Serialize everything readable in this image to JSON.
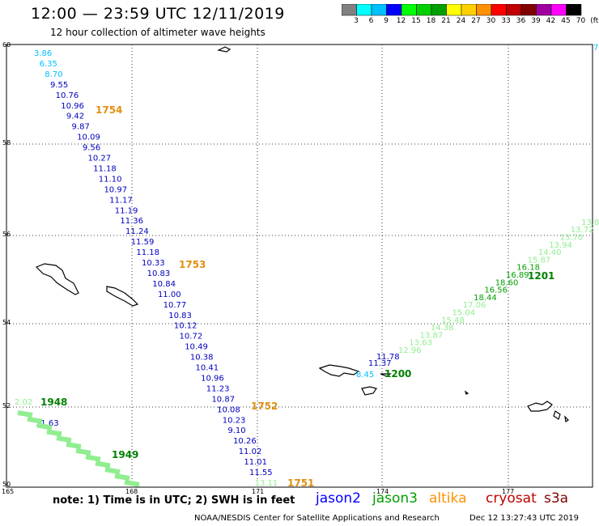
{
  "header": {
    "title": "12:00 — 23:59 UTC 12/11/2019",
    "subtitle": "12 hour collection of altimeter wave heights"
  },
  "colorbar": {
    "colors": [
      "#808080",
      "#00ffff",
      "#00c0ff",
      "#0000ff",
      "#00ff00",
      "#00d000",
      "#00a000",
      "#ffff00",
      "#ffd000",
      "#ff9000",
      "#ff0000",
      "#c00000",
      "#800000",
      "#a000a0",
      "#ff00ff",
      "#000000"
    ],
    "labels": [
      "3",
      "6",
      "9",
      "12",
      "15",
      "18",
      "21",
      "24",
      "27",
      "30",
      "33",
      "36",
      "39",
      "42",
      "45",
      "70",
      "(ft)"
    ]
  },
  "axes": {
    "lat_labels": [
      "60",
      "58",
      "56",
      "54",
      "52",
      "50"
    ],
    "lon_labels": [
      "165",
      "168",
      "171",
      "174",
      "177"
    ]
  },
  "tracks": {
    "jason2_track": [
      "3.86",
      "6.35",
      "8.70",
      "9.55",
      "10.76",
      "10.96",
      "9.42",
      "9.87",
      "10.09",
      "9.56",
      "10.27",
      "11.18",
      "11.10",
      "10.97",
      "11.17",
      "11.19",
      "11.36",
      "11.24",
      "11.59",
      "11.18",
      "10.33",
      "10.83",
      "10.84",
      "11.00",
      "10.77",
      "10.83",
      "10.12",
      "10.72",
      "10.49",
      "10.38",
      "10.41",
      "10.96",
      "11.23",
      "10.87",
      "10.08",
      "10.23",
      "9.10",
      "10.26",
      "11.02",
      "11.01",
      "11.55",
      "13.11"
    ],
    "jason2_times": [
      "1754",
      "1753",
      "1752",
      "1751"
    ],
    "jason3_left_track": [
      "2.02",
      "11.63"
    ],
    "jason3_left_times": [
      "1948",
      "1949"
    ],
    "jason3_right_track": [
      "8.45",
      "11.37",
      "11.78"
    ],
    "jason3_right_light": [
      "12.96",
      "13.63",
      "13.87",
      "14.38",
      "15.48",
      "15.04",
      "17.06",
      "18.44",
      "16.56",
      "18.60",
      "16.89",
      "16.18",
      "15.87",
      "14.40",
      "13.94",
      "13.70",
      "13.72",
      "13.8"
    ],
    "jason3_right_time": "1200",
    "jason3_right_time2": "1201",
    "edge_value": "7"
  },
  "legend": {
    "note": "note: 1) Time is in UTC; 2) SWH is in feet",
    "jason2": "jason2",
    "jason3": "jason3",
    "altika": "altika",
    "cryosat": "cryosat",
    "s3a": "s3a"
  },
  "footer": {
    "center": "NOAA/NESDIS Center for Satellite Applications and Research",
    "timestamp": "Dec 12 13:27:43 UTC 2019"
  }
}
